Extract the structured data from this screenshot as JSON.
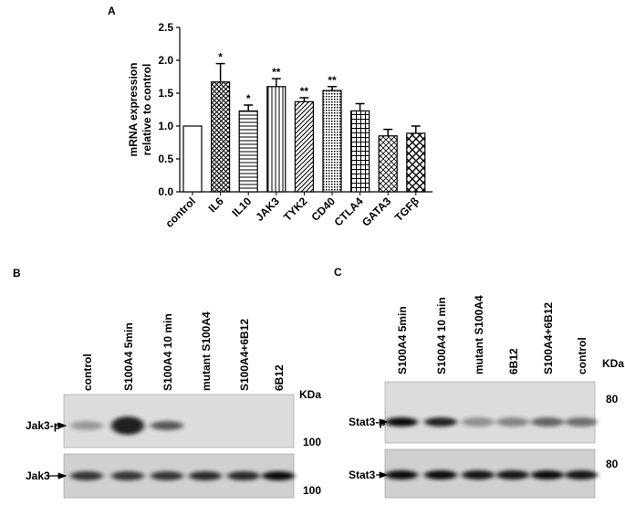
{
  "chart_data": {
    "type": "bar",
    "panel_label": "A",
    "ylabel": [
      "mRNA expression",
      "relative to control"
    ],
    "categories": [
      "control",
      "IL6",
      "IL10",
      "JAK3",
      "TYK2",
      "CD40",
      "CTLA4",
      "GATA3",
      "TGFβ"
    ],
    "values": [
      1.0,
      1.67,
      1.23,
      1.6,
      1.37,
      1.54,
      1.23,
      0.85,
      0.89
    ],
    "errors": [
      null,
      0.28,
      0.09,
      0.12,
      0.06,
      0.06,
      0.11,
      0.1,
      0.11
    ],
    "significance": [
      null,
      "*",
      "*",
      "**",
      "**",
      "**",
      null,
      null,
      null
    ],
    "patterns": [
      "none",
      "crosshatch",
      "horizontal",
      "vertical",
      "diagonal",
      "dots",
      "grid",
      "diagonal-grid",
      "diamond"
    ],
    "color": "#000000",
    "ylim": [
      0,
      2.5
    ],
    "yticks": [
      {
        "value": 0,
        "label": "0.0"
      },
      0.5,
      {
        "value": 1,
        "label": "1.0"
      },
      1.5,
      {
        "value": 2,
        "label": "2.0"
      },
      2.5
    ]
  },
  "blot_b": {
    "panel_label": "B",
    "unit": "KDa",
    "lanes": [
      "control",
      "S100A4 5min",
      "S100A4 10 min",
      "mutant S100A4",
      "S100A4+6B12",
      "6B12"
    ],
    "rows": [
      {
        "name": "Jak3-p",
        "marker": "100"
      },
      {
        "name": "Jak3",
        "marker": "100"
      }
    ]
  },
  "blot_c": {
    "panel_label": "C",
    "unit": "KDa",
    "lanes": [
      "S100A4 5min",
      "S100A4 10 min",
      "mutant S100A4",
      "6B12",
      "S100A4+6B12",
      "control"
    ],
    "rows": [
      {
        "name": "Stat3-p",
        "marker": "80"
      },
      {
        "name": "Stat3",
        "marker": "80"
      }
    ]
  }
}
